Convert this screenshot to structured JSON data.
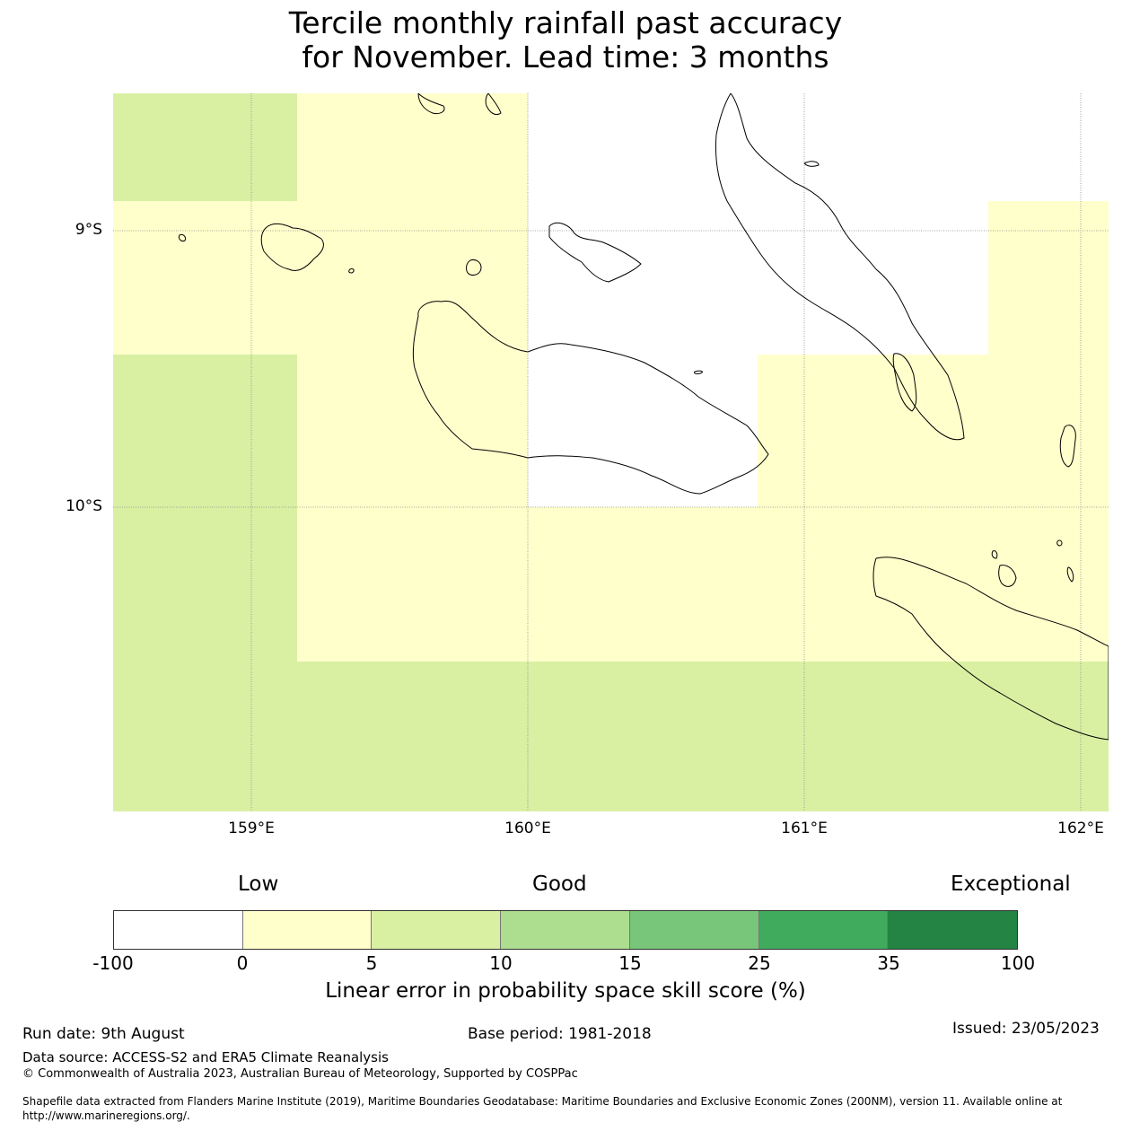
{
  "title_line1": "Tercile monthly rainfall past accuracy",
  "title_line2": "for November. Lead time: 3 months",
  "map": {
    "lat_labels": [
      "9°S",
      "10°S"
    ],
    "lon_labels": [
      "159°E",
      "160°E",
      "161°E",
      "162°E"
    ],
    "colors": {
      "range_0_5": "#ffffcc",
      "range_5_10": "#d9f0a3",
      "range_neg": "#ffffff",
      "gridline": "#888888",
      "coast": "#000000"
    }
  },
  "legend": {
    "categories": [
      "Low",
      "Good",
      "Exceptional"
    ],
    "ticks": [
      "-100",
      "0",
      "5",
      "10",
      "15",
      "25",
      "35",
      "100"
    ],
    "colors": [
      "#ffffff",
      "#ffffcc",
      "#d9f0a3",
      "#addd8e",
      "#78c679",
      "#41ab5d",
      "#238443"
    ],
    "label": "Linear error in probability space skill score (%)"
  },
  "footer": {
    "run_date": "Run date: 9th August",
    "base_period": "Base period: 1981-2018",
    "issued": "Issued: 23/05/2023",
    "data_source": "Data source: ACCESS-S2 and ERA5 Climate Reanalysis",
    "copyright": "© Commonwealth of Australia 2023, Australian Bureau of Meteorology, Supported by COSPPac",
    "shapefile_line1": "Shapefile data extracted from Flanders Marine Institute (2019), Maritime Boundaries Geodatabase: Maritime Boundaries and Exclusive Economic Zones (200NM), version 11. Available online at",
    "shapefile_line2": "http://www.marineregions.org/."
  }
}
